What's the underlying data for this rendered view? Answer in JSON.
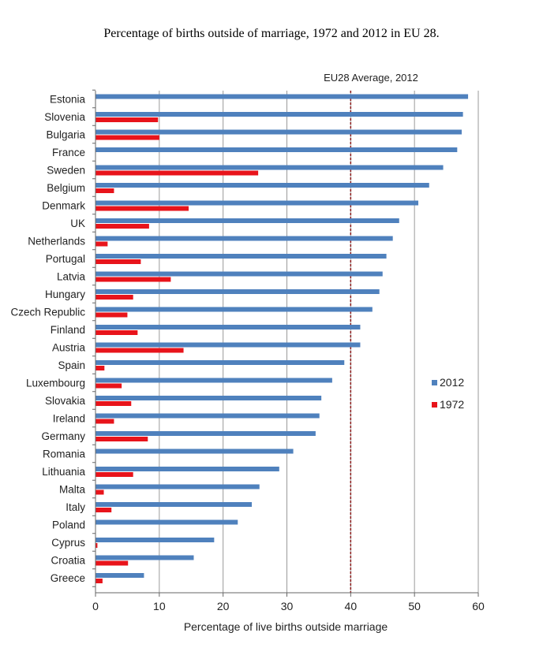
{
  "chart_data": {
    "type": "bar",
    "orientation": "horizontal",
    "title": "Percentage of births outside of marriage, 1972 and 2012 in EU 28.",
    "xlabel": "Percentage of live births outside marriage",
    "ylabel": "",
    "xlim": [
      0,
      60
    ],
    "x_ticks": [
      0,
      10,
      20,
      30,
      40,
      50,
      60
    ],
    "grid": "vertical",
    "legend": "right",
    "categories": [
      "Estonia",
      "Slovenia",
      "Bulgaria",
      "France",
      "Sweden",
      "Belgium",
      "Denmark",
      "UK",
      "Netherlands",
      "Portugal",
      "Latvia",
      "Hungary",
      "Czech Republic",
      "Finland",
      "Austria",
      "Spain",
      "Luxembourg",
      "Slovakia",
      "Ireland",
      "Germany",
      "Romania",
      "Lithuania",
      "Malta",
      "Italy",
      "Poland",
      "Cyprus",
      "Croatia",
      "Greece"
    ],
    "series": [
      {
        "name": "2012",
        "color": "#4f81bd",
        "values": [
          58.4,
          57.6,
          57.4,
          56.7,
          54.5,
          52.3,
          50.6,
          47.6,
          46.6,
          45.6,
          45.0,
          44.5,
          43.4,
          41.5,
          41.5,
          39.0,
          37.1,
          35.4,
          35.1,
          34.5,
          31.0,
          28.8,
          25.7,
          24.5,
          22.3,
          18.6,
          15.4,
          7.6
        ]
      },
      {
        "name": "1972",
        "color": "#e8141b",
        "values": [
          null,
          9.8,
          10.0,
          null,
          25.5,
          2.9,
          14.6,
          8.4,
          1.9,
          7.1,
          11.8,
          5.9,
          5.0,
          6.6,
          13.8,
          1.4,
          4.1,
          5.6,
          2.9,
          8.2,
          null,
          5.9,
          1.3,
          2.5,
          null,
          0.3,
          5.1,
          1.1
        ]
      }
    ],
    "reference_line": {
      "label": "EU28 Average, 2012",
      "value": 40,
      "color": "#8b1a1a"
    }
  }
}
